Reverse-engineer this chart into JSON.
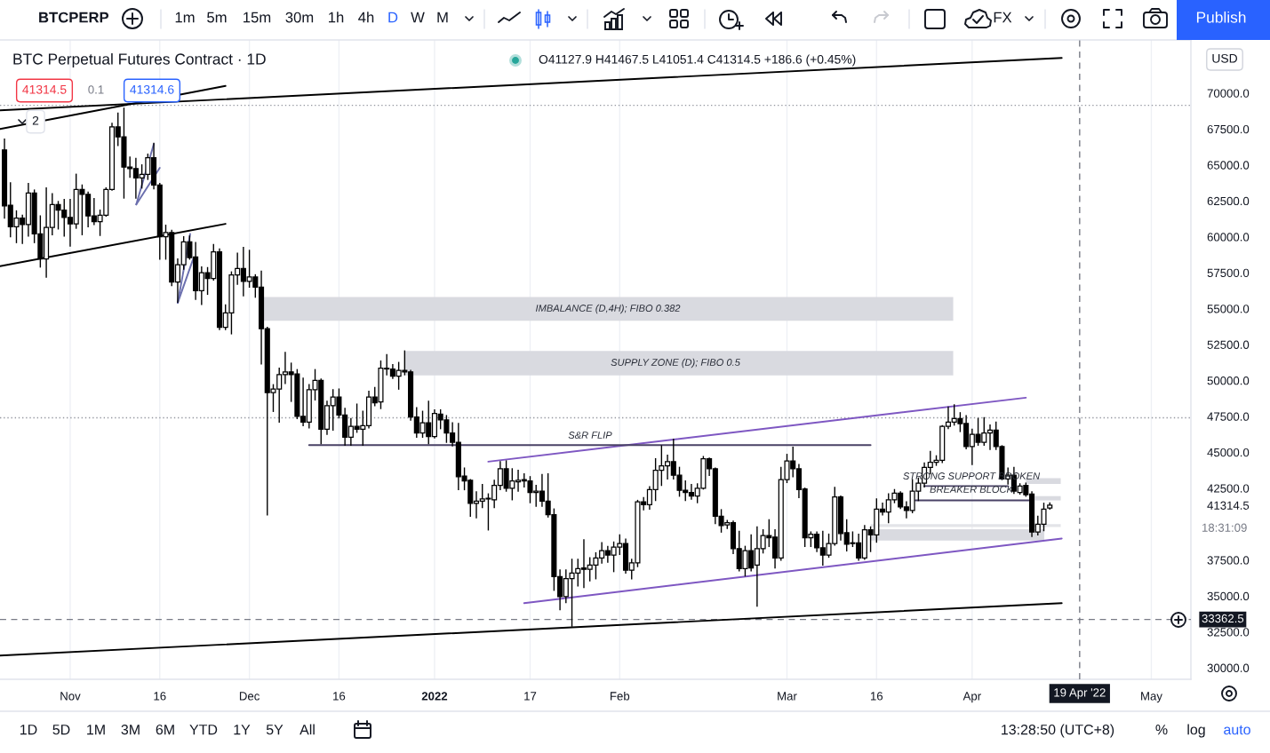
{
  "chart_data": {
    "type": "candlestick",
    "title": "BTC Perpetual Futures Contract · 1D",
    "color": "#000000",
    "x": [
      "2021-10-21",
      "2021-10-22",
      "2021-10-23",
      "2021-10-24",
      "2021-10-25",
      "2021-10-26",
      "2021-10-27",
      "2021-10-28",
      "2021-10-29",
      "2021-10-30",
      "2021-10-31",
      "2021-11-01",
      "2021-11-02",
      "2021-11-03",
      "2021-11-04",
      "2021-11-05",
      "2021-11-06",
      "2021-11-07",
      "2021-11-08",
      "2021-11-09",
      "2021-11-10",
      "2021-11-11",
      "2021-11-12",
      "2021-11-13",
      "2021-11-14",
      "2021-11-15",
      "2021-11-16",
      "2021-11-17",
      "2021-11-18",
      "2021-11-19",
      "2021-11-20",
      "2021-11-21",
      "2021-11-22",
      "2021-11-23",
      "2021-11-24",
      "2021-11-25",
      "2021-11-26",
      "2021-11-27",
      "2021-11-28",
      "2021-11-29",
      "2021-11-30",
      "2021-12-01",
      "2021-12-02",
      "2021-12-03",
      "2021-12-04",
      "2021-12-05",
      "2021-12-06",
      "2021-12-07",
      "2021-12-08",
      "2021-12-09",
      "2021-12-10",
      "2021-12-11",
      "2021-12-12",
      "2021-12-13",
      "2021-12-14",
      "2021-12-15",
      "2021-12-16",
      "2021-12-17",
      "2021-12-18",
      "2021-12-19",
      "2021-12-20",
      "2021-12-21",
      "2021-12-22",
      "2021-12-23",
      "2021-12-24",
      "2021-12-25",
      "2021-12-26",
      "2021-12-27",
      "2021-12-28",
      "2021-12-29",
      "2021-12-30",
      "2021-12-31",
      "2022-01-01",
      "2022-01-02",
      "2022-01-03",
      "2022-01-04",
      "2022-01-05",
      "2022-01-06",
      "2022-01-07",
      "2022-01-08",
      "2022-01-09",
      "2022-01-10",
      "2022-01-11",
      "2022-01-12",
      "2022-01-13",
      "2022-01-14",
      "2022-01-15",
      "2022-01-16",
      "2022-01-17",
      "2022-01-18",
      "2022-01-19",
      "2022-01-20",
      "2022-01-21",
      "2022-01-22",
      "2022-01-23",
      "2022-01-24",
      "2022-01-25",
      "2022-01-26",
      "2022-01-27",
      "2022-01-28",
      "2022-01-29",
      "2022-01-30",
      "2022-01-31",
      "2022-02-01",
      "2022-02-02",
      "2022-02-03",
      "2022-02-04",
      "2022-02-05",
      "2022-02-06",
      "2022-02-07",
      "2022-02-08",
      "2022-02-09",
      "2022-02-10",
      "2022-02-11",
      "2022-02-12",
      "2022-02-13",
      "2022-02-14",
      "2022-02-15",
      "2022-02-16",
      "2022-02-17",
      "2022-02-18",
      "2022-02-19",
      "2022-02-20",
      "2022-02-21",
      "2022-02-22",
      "2022-02-23",
      "2022-02-24",
      "2022-02-25",
      "2022-02-26",
      "2022-02-27",
      "2022-02-28",
      "2022-03-01",
      "2022-03-02",
      "2022-03-03",
      "2022-03-04",
      "2022-03-05",
      "2022-03-06",
      "2022-03-07",
      "2022-03-08",
      "2022-03-09",
      "2022-03-10",
      "2022-03-11",
      "2022-03-12",
      "2022-03-13",
      "2022-03-14",
      "2022-03-15",
      "2022-03-16",
      "2022-03-17",
      "2022-03-18",
      "2022-03-19",
      "2022-03-20",
      "2022-03-21",
      "2022-03-22",
      "2022-03-23",
      "2022-03-24",
      "2022-03-25",
      "2022-03-26",
      "2022-03-27",
      "2022-03-28",
      "2022-03-29",
      "2022-03-30",
      "2022-03-31",
      "2022-04-01",
      "2022-04-02",
      "2022-04-03",
      "2022-04-04",
      "2022-04-05",
      "2022-04-06",
      "2022-04-07",
      "2022-04-08",
      "2022-04-09",
      "2022-04-10",
      "2022-04-11",
      "2022-04-12",
      "2022-04-13",
      "2022-04-14"
    ],
    "ohlc": [
      [
        66050,
        66800,
        61300,
        62150
      ],
      [
        62200,
        63750,
        60000,
        60700
      ],
      [
        60700,
        61800,
        59600,
        61300
      ],
      [
        61300,
        61500,
        59550,
        60850
      ],
      [
        60850,
        63700,
        60050,
        63050
      ],
      [
        63050,
        63250,
        59600,
        60200
      ],
      [
        60200,
        61450,
        57900,
        58450
      ],
      [
        58450,
        63400,
        57200,
        60650
      ],
      [
        60650,
        63000,
        60150,
        62250
      ],
      [
        62250,
        62450,
        60550,
        61850
      ],
      [
        61850,
        62600,
        60050,
        61350
      ],
      [
        61350,
        62600,
        59350,
        60900
      ],
      [
        60900,
        64350,
        60600,
        63300
      ],
      [
        63300,
        63600,
        60150,
        62950
      ],
      [
        62950,
        63100,
        60700,
        61450
      ],
      [
        61450,
        62650,
        60850,
        61050
      ],
      [
        61050,
        61850,
        60100,
        61500
      ],
      [
        61500,
        63400,
        61450,
        63300
      ],
      [
        63300,
        67900,
        63250,
        67650
      ],
      [
        67650,
        68600,
        66350,
        66950
      ],
      [
        66950,
        68950,
        62700,
        64850
      ],
      [
        64850,
        65550,
        64150,
        64750
      ],
      [
        64750,
        65450,
        62700,
        64100
      ],
      [
        64100,
        65000,
        63400,
        64350
      ],
      [
        64350,
        65750,
        64000,
        65500
      ],
      [
        65500,
        66500,
        63350,
        63600
      ],
      [
        63600,
        63700,
        58450,
        60000
      ],
      [
        60000,
        60800,
        58450,
        60300
      ],
      [
        60300,
        60450,
        56600,
        56850
      ],
      [
        56850,
        58450,
        55450,
        58050
      ],
      [
        58050,
        60000,
        57750,
        59650
      ],
      [
        59650,
        60050,
        58450,
        58550
      ],
      [
        58600,
        59600,
        55650,
        56250
      ],
      [
        56250,
        57900,
        55300,
        57500
      ],
      [
        57500,
        57850,
        56000,
        57100
      ],
      [
        57100,
        59450,
        57000,
        58950
      ],
      [
        58950,
        59150,
        53550,
        53700
      ],
      [
        53700,
        55250,
        53550,
        54700
      ],
      [
        54700,
        57550,
        53250,
        57350
      ],
      [
        57350,
        58850,
        56700,
        57800
      ],
      [
        57800,
        59250,
        55900,
        56900
      ],
      [
        56900,
        59050,
        56500,
        57200
      ],
      [
        57200,
        57350,
        55800,
        56500
      ],
      [
        56500,
        57600,
        51150,
        53600
      ],
      [
        53600,
        53700,
        40650,
        49150
      ],
      [
        49150,
        49700,
        47850,
        49400
      ],
      [
        49400,
        50850,
        47100,
        50400
      ],
      [
        50400,
        51950,
        49800,
        50600
      ],
      [
        50600,
        51200,
        48550,
        50400
      ],
      [
        50450,
        50750,
        47350,
        47500
      ],
      [
        47500,
        50150,
        46850,
        47100
      ],
      [
        47100,
        49700,
        46700,
        49350
      ],
      [
        49350,
        50750,
        48650,
        50000
      ],
      [
        50000,
        50100,
        45600,
        46600
      ],
      [
        46600,
        48550,
        46250,
        48250
      ],
      [
        48250,
        49350,
        46550,
        48850
      ],
      [
        48850,
        49400,
        47400,
        47600
      ],
      [
        47600,
        48050,
        45500,
        46050
      ],
      [
        46050,
        47350,
        45500,
        46800
      ],
      [
        46800,
        48350,
        46400,
        46600
      ],
      [
        46600,
        47850,
        45500,
        46850
      ],
      [
        46850,
        49250,
        46700,
        48850
      ],
      [
        48850,
        49500,
        48250,
        48450
      ],
      [
        48500,
        51350,
        48050,
        50850
      ],
      [
        50850,
        51800,
        50400,
        50800
      ],
      [
        50800,
        51100,
        50150,
        50300
      ],
      [
        50300,
        51250,
        49400,
        50700
      ],
      [
        50700,
        52050,
        50400,
        50600
      ],
      [
        50600,
        50700,
        47250,
        47450
      ],
      [
        47450,
        48100,
        46050,
        46350
      ],
      [
        46350,
        47850,
        46050,
        47050
      ],
      [
        47050,
        48550,
        45600,
        46100
      ],
      [
        46100,
        47950,
        46000,
        47700
      ],
      [
        47650,
        47950,
        46650,
        47250
      ],
      [
        47250,
        47550,
        45700,
        46350
      ],
      [
        46350,
        47050,
        45450,
        45700
      ],
      [
        45700,
        47000,
        42400,
        43300
      ],
      [
        43350,
        43900,
        42400,
        43000
      ],
      [
        43050,
        43100,
        40550,
        41450
      ],
      [
        41450,
        42250,
        40450,
        41600
      ],
      [
        41600,
        42750,
        41150,
        41750
      ],
      [
        41800,
        42100,
        39600,
        41750
      ],
      [
        41700,
        43050,
        41150,
        42700
      ],
      [
        42700,
        44350,
        42400,
        43850
      ],
      [
        43850,
        44400,
        42300,
        42500
      ],
      [
        42500,
        43850,
        41700,
        43000
      ],
      [
        42950,
        43750,
        42300,
        43050
      ],
      [
        43100,
        43500,
        42600,
        43000
      ],
      [
        43000,
        43300,
        41500,
        42200
      ],
      [
        42200,
        42700,
        41250,
        42300
      ],
      [
        42300,
        43450,
        41250,
        41600
      ],
      [
        41600,
        43500,
        40500,
        40650
      ],
      [
        40650,
        41050,
        35400,
        36350
      ],
      [
        36350,
        36800,
        34050,
        34950
      ],
      [
        34950,
        36800,
        34550,
        36200
      ],
      [
        36200,
        37550,
        32900,
        36600
      ],
      [
        36600,
        37550,
        35700,
        36900
      ],
      [
        36950,
        38900,
        35600,
        36850
      ],
      [
        36850,
        37650,
        36050,
        37150
      ],
      [
        37150,
        38000,
        36200,
        37650
      ],
      [
        37650,
        38700,
        37300,
        38150
      ],
      [
        38150,
        38450,
        37350,
        37850
      ],
      [
        37850,
        38750,
        36700,
        38400
      ],
      [
        38400,
        39250,
        37900,
        38650
      ],
      [
        38650,
        38950,
        36600,
        36800
      ],
      [
        36800,
        37550,
        36200,
        37300
      ],
      [
        37300,
        41650,
        37050,
        41550
      ],
      [
        41550,
        41850,
        41000,
        41350
      ],
      [
        41350,
        42600,
        41050,
        42400
      ],
      [
        42400,
        44550,
        41650,
        43750
      ],
      [
        43750,
        45450,
        42700,
        44050
      ],
      [
        44050,
        44800,
        43150,
        44350
      ],
      [
        44350,
        45900,
        43150,
        43400
      ],
      [
        43400,
        43950,
        41950,
        42350
      ],
      [
        42350,
        43000,
        41650,
        42200
      ],
      [
        42200,
        42750,
        41750,
        41950
      ],
      [
        41950,
        42800,
        41500,
        42500
      ],
      [
        42500,
        44700,
        42450,
        44550
      ],
      [
        44550,
        44600,
        43400,
        43850
      ],
      [
        43850,
        43900,
        40050,
        40550
      ],
      [
        40550,
        41000,
        39450,
        39900
      ],
      [
        39950,
        40250,
        39700,
        40100
      ],
      [
        40100,
        40200,
        37950,
        38300
      ],
      [
        38300,
        39500,
        36750,
        36900
      ],
      [
        36900,
        38450,
        36400,
        38150
      ],
      [
        38150,
        39250,
        36750,
        36950
      ],
      [
        37150,
        39800,
        34300,
        38300
      ],
      [
        38300,
        39600,
        38000,
        39200
      ],
      [
        39200,
        40300,
        38450,
        39050
      ],
      [
        39100,
        39600,
        36950,
        37650
      ],
      [
        37650,
        43950,
        37500,
        43100
      ],
      [
        43100,
        44850,
        42900,
        44400
      ],
      [
        44400,
        45350,
        43300,
        43850
      ],
      [
        43850,
        44150,
        41850,
        42400
      ],
      [
        42450,
        42500,
        38450,
        39050
      ],
      [
        39050,
        39450,
        38450,
        39300
      ],
      [
        39300,
        39450,
        38100,
        38350
      ],
      [
        38350,
        39500,
        37150,
        37850
      ],
      [
        37850,
        39300,
        37700,
        38650
      ],
      [
        38650,
        42550,
        38550,
        41900
      ],
      [
        41900,
        41950,
        38900,
        39350
      ],
      [
        39400,
        40300,
        38150,
        38600
      ],
      [
        38700,
        39450,
        38450,
        38650
      ],
      [
        38700,
        39300,
        37500,
        37650
      ],
      [
        37650,
        39900,
        37550,
        39600
      ],
      [
        39600,
        39800,
        38100,
        39250
      ],
      [
        39250,
        41750,
        38750,
        41050
      ],
      [
        41050,
        41450,
        40650,
        40850
      ],
      [
        40850,
        42100,
        40100,
        41700
      ],
      [
        41700,
        42400,
        41500,
        42150
      ],
      [
        42150,
        42250,
        41100,
        41200
      ],
      [
        41200,
        41550,
        40450,
        40950
      ],
      [
        40950,
        43100,
        40800,
        42300
      ],
      [
        42300,
        43200,
        41650,
        42850
      ],
      [
        42850,
        44250,
        42600,
        43950
      ],
      [
        43950,
        45050,
        43500,
        44300
      ],
      [
        44300,
        44750,
        44100,
        44450
      ],
      [
        44450,
        46850,
        44300,
        46800
      ],
      [
        46800,
        48150,
        46650,
        47100
      ],
      [
        47100,
        48300,
        46900,
        47350
      ],
      [
        47350,
        47750,
        46450,
        47000
      ],
      [
        47000,
        47550,
        45250,
        45400
      ],
      [
        45400,
        46600,
        44150,
        46250
      ],
      [
        46250,
        47350,
        45500,
        45700
      ],
      [
        45700,
        47400,
        45500,
        46350
      ],
      [
        46350,
        46900,
        45200,
        46550
      ],
      [
        46550,
        47100,
        45200,
        45400
      ],
      [
        45400,
        45450,
        43100,
        43150
      ],
      [
        43150,
        43900,
        42800,
        43400
      ],
      [
        43400,
        43950,
        42150,
        42300
      ],
      [
        42200,
        42800,
        42100,
        42650
      ],
      [
        42700,
        42850,
        41950,
        42050
      ],
      [
        42100,
        42250,
        39150,
        39450
      ],
      [
        39450,
        40550,
        39250,
        40000
      ],
      [
        40000,
        41450,
        39550,
        41050
      ],
      [
        41127.9,
        41467.5,
        41051.4,
        41314.5
      ]
    ],
    "series": [
      {
        "type": "area",
        "x": [
          "2021-12-03T10:00",
          "2022-03-28T20:00"
        ],
        "values": [
          null,
          null
        ],
        "lower": [
          54150,
          54150
        ],
        "upper": [
          55800,
          55800
        ],
        "color": "#d9dae0"
      },
      {
        "type": "area",
        "x": [
          "2021-12-27",
          "2022-03-28T20:00"
        ],
        "values": [
          null,
          null
        ],
        "lower": [
          50350,
          50350
        ],
        "upper": [
          52050,
          52050
        ],
        "color": "#d9dae0"
      },
      {
        "type": "area",
        "x": [
          "2022-03-15",
          "2022-04-13T02:00"
        ],
        "values": [
          null,
          null
        ],
        "lower": [
          38850,
          38850
        ],
        "upper": [
          39650,
          39650
        ],
        "color": "#d9dae0"
      },
      {
        "type": "area",
        "x": [
          "2022-04-10",
          "2022-04-15T20:00"
        ],
        "values": [
          null,
          null
        ],
        "lower": [
          42800,
          42800
        ],
        "upper": [
          43200,
          43200
        ],
        "color": "#d9dae0"
      },
      {
        "type": "area",
        "x": [
          "2022-04-11T12:00",
          "2022-04-15T20:00"
        ],
        "values": [
          null,
          null
        ],
        "lower": [
          41650,
          41650
        ],
        "upper": [
          41950,
          41950
        ],
        "color": "#d9dae0"
      },
      {
        "type": "area",
        "x": [
          "2022-03-15",
          "2022-04-15T20:00"
        ],
        "values": [
          null,
          null
        ],
        "lower": [
          39800,
          39800
        ],
        "upper": [
          40000,
          40000
        ],
        "color": "#e3e4e8"
      },
      {
        "type": "line",
        "x": [
          "2021-10-20T06:00",
          "2022-04-16"
        ],
        "values": [
          68800,
          72450
        ],
        "color": "#000000"
      },
      {
        "type": "line",
        "x": [
          "2021-10-20T06:00",
          "2021-11-27"
        ],
        "values": [
          67500,
          70500
        ],
        "color": "#000000"
      },
      {
        "type": "line",
        "x": [
          "2021-10-20T06:00",
          "2021-11-27"
        ],
        "values": [
          57950,
          60900
        ],
        "color": "#000000"
      },
      {
        "type": "line",
        "x": [
          "2021-10-20T06:00",
          "2022-04-16"
        ],
        "values": [
          30850,
          34500
        ],
        "color": "#000000"
      },
      {
        "type": "line",
        "x": [
          "2022-01-10",
          "2022-04-10"
        ],
        "values": [
          44350,
          48800
        ],
        "color": "#7e57c2"
      },
      {
        "type": "line",
        "x": [
          "2022-01-16",
          "2022-04-16"
        ],
        "values": [
          34500,
          39000
        ],
        "color": "#7e57c2"
      },
      {
        "type": "line",
        "x": [
          "2021-12-11",
          "2022-03-15"
        ],
        "values": [
          45500,
          45500
        ],
        "color": "#4a4266"
      },
      {
        "type": "line",
        "x": [
          "2022-03-24",
          "2022-04-07"
        ],
        "values": [
          42650,
          42650
        ],
        "color": "#4a4266"
      },
      {
        "type": "line",
        "x": [
          "2022-03-22T12:00",
          "2022-04-10T12:00"
        ],
        "values": [
          41650,
          41650
        ],
        "color": "#4a4266"
      },
      {
        "type": "line",
        "x": [
          "2021-11-12T01:30",
          "2021-11-15"
        ],
        "values": [
          62250,
          66450
        ],
        "color": "#6b6fae"
      },
      {
        "type": "line",
        "x": [
          "2021-11-12T01:30",
          "2021-11-16"
        ],
        "values": [
          62250,
          64800
        ],
        "color": "#6b6fae"
      },
      {
        "type": "line",
        "x": [
          "2021-11-19",
          "2021-11-21T02:00"
        ],
        "values": [
          55400,
          60200
        ],
        "color": "#6b6fae"
      },
      {
        "type": "line",
        "x": [
          "2021-11-19",
          "2021-11-21T16:00"
        ],
        "values": [
          55400,
          58550
        ],
        "color": "#6b6fae"
      }
    ],
    "xlim": [
      "2021-10-20T06:00",
      "2022-05-07T15:00"
    ],
    "ylim": [
      29200,
      73700
    ],
    "xticks": [
      {
        "value": "2021-11-01",
        "label": "Nov"
      },
      {
        "value": "2021-11-16",
        "label": "16"
      },
      {
        "value": "2021-12-01",
        "label": "Dec"
      },
      {
        "value": "2021-12-16",
        "label": "16"
      },
      {
        "value": "2022-01-01",
        "label": "2022"
      },
      {
        "value": "2022-01-17",
        "label": "17"
      },
      {
        "value": "2022-02-01",
        "label": "Feb"
      },
      {
        "value": "2022-03-01",
        "label": "Mar"
      },
      {
        "value": "2022-03-16",
        "label": "16"
      },
      {
        "value": "2022-04-01",
        "label": "Apr"
      },
      {
        "value": "2022-05-01",
        "label": "May"
      }
    ],
    "yticks": [
      {
        "value": 30000,
        "label": "30000.0"
      },
      {
        "value": 32500,
        "label": "32500.0"
      },
      {
        "value": 35000,
        "label": "35000.0"
      },
      {
        "value": 37500,
        "label": "37500.0"
      },
      {
        "value": 41314.5,
        "label": "41314.5"
      },
      {
        "value": 42500,
        "label": "42500.0"
      },
      {
        "value": 45000,
        "label": "45000.0"
      },
      {
        "value": 47500,
        "label": "47500.0"
      },
      {
        "value": 50000,
        "label": "50000.0"
      },
      {
        "value": 52500,
        "label": "52500.0"
      },
      {
        "value": 55000,
        "label": "55000.0"
      },
      {
        "value": 57500,
        "label": "57500.0"
      },
      {
        "value": 60000,
        "label": "60000.0"
      },
      {
        "value": 62500,
        "label": "62500.0"
      },
      {
        "value": 65000,
        "label": "65000.0"
      },
      {
        "value": 67500,
        "label": "67500.0"
      },
      {
        "value": 70000,
        "label": "70000.0"
      }
    ],
    "grid": "x",
    "ref_lines": [
      {
        "axis": "y",
        "value": 33362.5,
        "label": "33362.5",
        "line_style": "dashed",
        "color": "#787b86"
      },
      {
        "axis": "x",
        "value": "2022-04-19",
        "label": "19 Apr '22",
        "line_style": "dashed",
        "color": "#787b86"
      },
      {
        "axis": "y",
        "value": 69150,
        "line_style": "dotted",
        "color": "#9598a1"
      },
      {
        "axis": "y",
        "value": 47400,
        "line_style": "dotted",
        "color": "#9598a1"
      }
    ],
    "annotations": [
      "O41127.9 H41467.5 L41051.4 C41314.5 +186.6 (+0.45%)",
      "41314.5",
      "0.1",
      "41314.6",
      "2",
      "BTCPERP",
      "1m",
      "5m",
      "15m",
      "30m",
      "1h",
      "4h",
      "D",
      "W",
      "M",
      "FX",
      "Publish",
      "1D",
      "5D",
      "1M",
      "3M",
      "6M",
      "YTD",
      "1Y",
      "5Y",
      "All",
      "13:28:50 (UTC+8)",
      "%",
      "log",
      "auto",
      "USD",
      "18:31:09",
      "IMBALANCE (D,4H); FIBO 0.382",
      "SUPPLY ZONE (D); FIBO 0.5",
      "S&R FLIP",
      "STRONG SUPPORT BROKEN",
      "BREAKER BLOCK"
    ]
  }
}
